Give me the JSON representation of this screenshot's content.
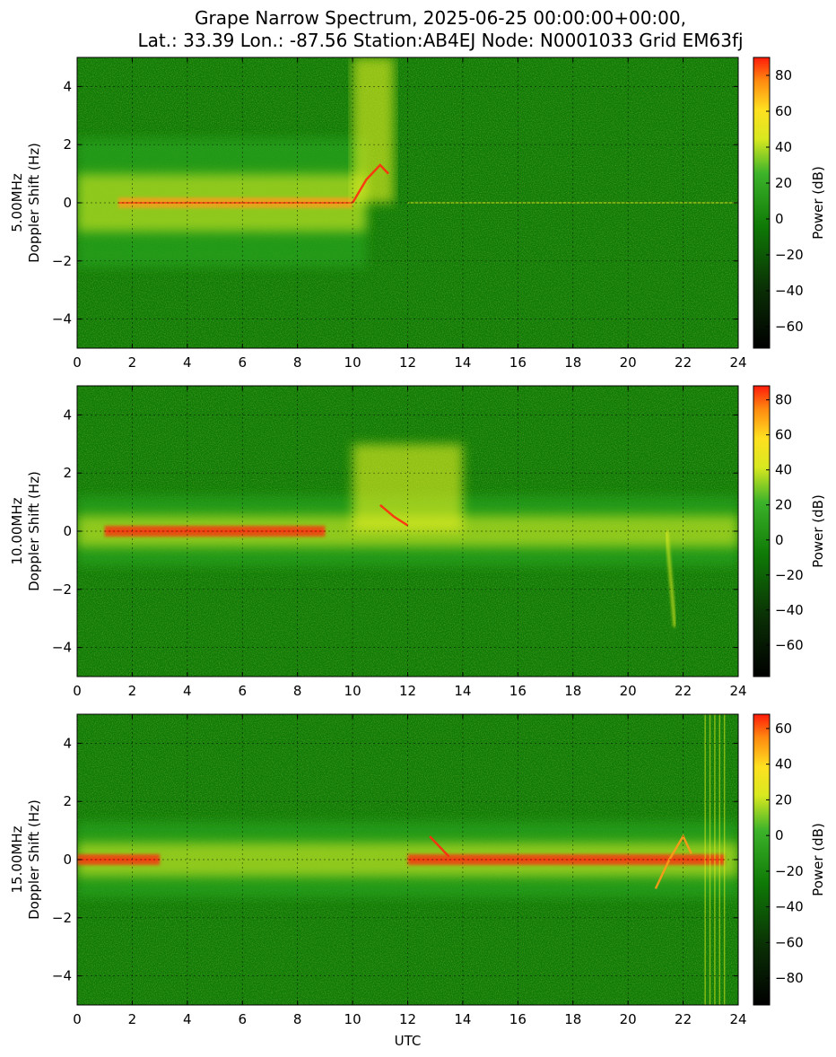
{
  "title": {
    "line1": "Grape Narrow Spectrum, 2025-06-25 00:00:00+00:00,",
    "line2": "Lat.: 33.39 Lon.: -87.56 Station:AB4EJ Node: N0001033 Grid EM63fj"
  },
  "colors": {
    "background_green": "#0f7a06",
    "mid_green": "#26a01a",
    "yellow": "#e8f020",
    "orange": "#ff9a1a",
    "red": "#ff2a10",
    "grid": "#000000"
  },
  "chart_data": [
    {
      "type": "heatmap",
      "frequency_label": "5.00MHz",
      "ylabel": "Doppler Shift (Hz)",
      "xlabel": "",
      "xlim": [
        0,
        24
      ],
      "ylim": [
        -5,
        5
      ],
      "x_ticks": [
        "0",
        "2",
        "4",
        "6",
        "8",
        "10",
        "12",
        "14",
        "16",
        "18",
        "20",
        "22",
        "24"
      ],
      "y_ticks": [
        "4",
        "2",
        "0",
        "−2",
        "−4"
      ],
      "colorbar": {
        "label": "Power (dB)",
        "range": [
          -72,
          90
        ],
        "ticks": [
          "80",
          "60",
          "40",
          "20",
          "0",
          "−20",
          "−40",
          "−60"
        ],
        "tick_values": [
          80,
          60,
          40,
          20,
          0,
          -20,
          -40,
          -60
        ]
      },
      "grid": true,
      "features": [
        {
          "kind": "spread",
          "x_start": 0,
          "x_end": 10.5,
          "half_width_hz": 2.2,
          "level": "yellow"
        },
        {
          "kind": "carrier",
          "x_start": 1.5,
          "x_end": 10,
          "doppler_hz": 0,
          "level": "orange"
        },
        {
          "kind": "plume",
          "x_start": 10,
          "x_end": 11.5,
          "doppler_hz_range": [
            0,
            5
          ],
          "level": "yellow"
        },
        {
          "kind": "trace",
          "points": [
            [
              10,
              0
            ],
            [
              10.5,
              0.8
            ],
            [
              11,
              1.3
            ],
            [
              11.3,
              1.0
            ]
          ],
          "level": "red"
        },
        {
          "kind": "faint_line",
          "x_start": 12,
          "x_end": 24,
          "doppler_hz": 0,
          "level": "yellow"
        }
      ]
    },
    {
      "type": "heatmap",
      "frequency_label": "10.00MHz",
      "ylabel": "Doppler Shift (Hz)",
      "xlabel": "",
      "xlim": [
        0,
        24
      ],
      "ylim": [
        -5,
        5
      ],
      "x_ticks": [
        "0",
        "2",
        "4",
        "6",
        "8",
        "10",
        "12",
        "14",
        "16",
        "18",
        "20",
        "22",
        "24"
      ],
      "y_ticks": [
        "4",
        "2",
        "0",
        "−2",
        "−4"
      ],
      "colorbar": {
        "label": "Power (dB)",
        "range": [
          -78,
          88
        ],
        "ticks": [
          "80",
          "60",
          "40",
          "20",
          "0",
          "−20",
          "−40",
          "−60"
        ],
        "tick_values": [
          80,
          60,
          40,
          20,
          0,
          -20,
          -40,
          -60
        ]
      },
      "grid": true,
      "features": [
        {
          "kind": "spread",
          "x_start": 0,
          "x_end": 24,
          "half_width_hz": 1.2,
          "level": "yellow"
        },
        {
          "kind": "carrier",
          "x_start": 1,
          "x_end": 9,
          "doppler_hz": 0,
          "level": "red"
        },
        {
          "kind": "plume",
          "x_start": 10,
          "x_end": 14,
          "doppler_hz_range": [
            0,
            3
          ],
          "level": "yellow"
        },
        {
          "kind": "trace",
          "points": [
            [
              11,
              0.9
            ],
            [
              11.5,
              0.5
            ],
            [
              12,
              0.2
            ]
          ],
          "level": "red"
        },
        {
          "kind": "dip",
          "x": 21.7,
          "doppler_hz": -3.3,
          "level": "yellow"
        }
      ]
    },
    {
      "type": "heatmap",
      "frequency_label": "15.00MHz",
      "ylabel": "Doppler Shift (Hz)",
      "xlabel": "UTC",
      "xlim": [
        0,
        24
      ],
      "ylim": [
        -5,
        5
      ],
      "x_ticks": [
        "0",
        "2",
        "4",
        "6",
        "8",
        "10",
        "12",
        "14",
        "16",
        "18",
        "20",
        "22",
        "24"
      ],
      "y_ticks": [
        "4",
        "2",
        "0",
        "−2",
        "−4"
      ],
      "colorbar": {
        "label": "Power (dB)",
        "range": [
          -95,
          68
        ],
        "ticks": [
          "60",
          "40",
          "20",
          "0",
          "−20",
          "−40",
          "−60",
          "−80"
        ],
        "tick_values": [
          60,
          40,
          20,
          0,
          -20,
          -40,
          -60,
          -80
        ]
      },
      "grid": true,
      "features": [
        {
          "kind": "spread",
          "x_start": 0,
          "x_end": 24,
          "half_width_hz": 1.3,
          "level": "yellow"
        },
        {
          "kind": "carrier",
          "x_start": 0,
          "x_end": 3,
          "doppler_hz": 0,
          "level": "red"
        },
        {
          "kind": "carrier",
          "x_start": 12,
          "x_end": 23.5,
          "doppler_hz": 0,
          "level": "red"
        },
        {
          "kind": "trace",
          "points": [
            [
              12.8,
              0.8
            ],
            [
              13.2,
              0.4
            ],
            [
              13.5,
              0.1
            ]
          ],
          "level": "red"
        },
        {
          "kind": "trace",
          "points": [
            [
              21,
              -1
            ],
            [
              21.5,
              0
            ],
            [
              22,
              0.8
            ],
            [
              22.3,
              0.2
            ]
          ],
          "level": "orange"
        },
        {
          "kind": "streaks",
          "x_start": 22.8,
          "x_end": 23.5,
          "level": "yellow"
        }
      ]
    }
  ]
}
